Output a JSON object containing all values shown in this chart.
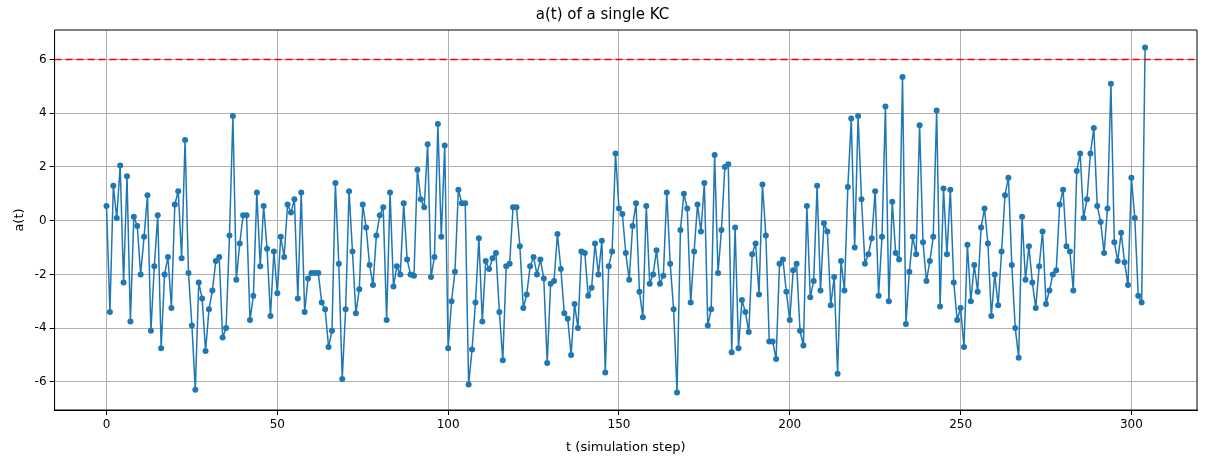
{
  "chart_data": {
    "type": "line",
    "title": "a(t) of a single KC",
    "xlabel": "t (simulation step)",
    "ylabel": "a(t)",
    "x": [
      0,
      1,
      2,
      3,
      4,
      5,
      6,
      7,
      8,
      9,
      10,
      11,
      12,
      13,
      14,
      15,
      16,
      17,
      18,
      19,
      20,
      21,
      22,
      23,
      24,
      25,
      26,
      27,
      28,
      29,
      30,
      31,
      32,
      33,
      34,
      35,
      36,
      37,
      38,
      39,
      40,
      41,
      42,
      43,
      44,
      45,
      46,
      47,
      48,
      49,
      50,
      51,
      52,
      53,
      54,
      55,
      56,
      57,
      58,
      59,
      60,
      61,
      62,
      63,
      64,
      65,
      66,
      67,
      68,
      69,
      70,
      71,
      72,
      73,
      74,
      75,
      76,
      77,
      78,
      79,
      80,
      81,
      82,
      83,
      84,
      85,
      86,
      87,
      88,
      89,
      90,
      91,
      92,
      93,
      94,
      95,
      96,
      97,
      98,
      99,
      100,
      101,
      102,
      103,
      104,
      105,
      106,
      107,
      108,
      109,
      110,
      111,
      112,
      113,
      114,
      115,
      116,
      117,
      118,
      119,
      120,
      121,
      122,
      123,
      124,
      125,
      126,
      127,
      128,
      129,
      130,
      131,
      132,
      133,
      134,
      135,
      136,
      137,
      138,
      139,
      140,
      141,
      142,
      143,
      144,
      145,
      146,
      147,
      148,
      149,
      150,
      151,
      152,
      153,
      154,
      155,
      156,
      157,
      158,
      159,
      160,
      161,
      162,
      163,
      164,
      165,
      166,
      167,
      168,
      169,
      170,
      171,
      172,
      173,
      174,
      175,
      176,
      177,
      178,
      179,
      180,
      181,
      182,
      183,
      184,
      185,
      186,
      187,
      188,
      189,
      190,
      191,
      192,
      193,
      194,
      195,
      196,
      197,
      198,
      199,
      200,
      201,
      202,
      203,
      204,
      205,
      206,
      207,
      208,
      209,
      210,
      211,
      212,
      213,
      214,
      215,
      216,
      217,
      218,
      219,
      220,
      221,
      222,
      223,
      224,
      225,
      226,
      227,
      228,
      229,
      230,
      231,
      232,
      233,
      234,
      235,
      236,
      237,
      238,
      239,
      240,
      241,
      242,
      243,
      244,
      245,
      246,
      247,
      248,
      249,
      250,
      251,
      252,
      253,
      254,
      255,
      256,
      257,
      258,
      259,
      260,
      261,
      262,
      263,
      264,
      265,
      266,
      267,
      268,
      269,
      270,
      271,
      272,
      273,
      274,
      275,
      276,
      277,
      278,
      279,
      280,
      281,
      282,
      283,
      284,
      285,
      286,
      287,
      288,
      289,
      290,
      291,
      292,
      293,
      294,
      295,
      296,
      297,
      298,
      299,
      300,
      301,
      302,
      303,
      304
    ],
    "series": [
      {
        "color": "#1f77b4",
        "values": [
          0.55,
          -3.4,
          1.3,
          0.1,
          2.05,
          -2.3,
          1.65,
          -3.75,
          0.15,
          -0.2,
          -2.0,
          -0.6,
          0.95,
          -4.1,
          -1.7,
          0.2,
          -4.75,
          -2.0,
          -1.35,
          -3.25,
          0.6,
          1.1,
          -1.4,
          3.0,
          -1.95,
          -3.9,
          -6.3,
          -2.3,
          -2.9,
          -4.85,
          -3.3,
          -2.6,
          -1.5,
          -1.35,
          -4.35,
          -4.0,
          -0.55,
          3.9,
          -2.2,
          -0.85,
          0.2,
          0.2,
          -3.7,
          -2.8,
          1.05,
          -1.7,
          0.55,
          -1.05,
          -3.55,
          -1.15,
          -2.7,
          -0.6,
          -1.35,
          0.6,
          0.3,
          0.8,
          -2.9,
          1.05,
          -3.4,
          -2.15,
          -1.95,
          -1.95,
          -1.95,
          -3.05,
          -3.3,
          -4.7,
          -4.1,
          1.4,
          -1.6,
          -5.9,
          -3.3,
          1.1,
          -1.15,
          -3.45,
          -2.55,
          0.6,
          -0.25,
          -1.65,
          -2.4,
          -0.55,
          0.2,
          0.5,
          -3.7,
          1.05,
          -2.45,
          -1.7,
          -2.0,
          0.65,
          -1.45,
          -2.0,
          -2.05,
          1.9,
          0.8,
          0.5,
          2.85,
          -2.1,
          -1.35,
          3.6,
          -0.6,
          2.8,
          -4.75,
          -3.0,
          -1.9,
          1.15,
          0.65,
          0.65,
          -6.1,
          -4.8,
          -3.05,
          -0.65,
          -3.75,
          -1.5,
          -1.8,
          -1.4,
          -1.2,
          -3.4,
          -5.2,
          -1.7,
          -1.6,
          0.5,
          0.5,
          -0.95,
          -3.25,
          -2.75,
          -1.7,
          -1.35,
          -2.0,
          -1.45,
          -2.15,
          -5.3,
          -2.35,
          -2.25,
          -0.5,
          -1.8,
          -3.45,
          -3.65,
          -5.0,
          -3.1,
          -4.0,
          -1.15,
          -1.2,
          -2.8,
          -2.5,
          -0.85,
          -2.0,
          -0.75,
          -5.65,
          -1.7,
          -1.15,
          2.5,
          0.45,
          0.25,
          -1.2,
          -2.2,
          -0.2,
          0.65,
          -2.65,
          -3.6,
          0.55,
          -2.35,
          -2.0,
          -1.1,
          -2.35,
          -2.05,
          1.05,
          -1.6,
          -3.3,
          -6.4,
          -0.35,
          1.0,
          0.45,
          -3.05,
          -1.15,
          0.6,
          -0.4,
          1.4,
          -3.9,
          -3.3,
          2.45,
          -1.95,
          -0.35,
          2.0,
          2.1,
          -4.9,
          -0.25,
          -4.75,
          -2.95,
          -3.4,
          -4.15,
          -1.25,
          -0.85,
          -2.75,
          1.35,
          -0.55,
          -4.5,
          -4.5,
          -5.15,
          -1.6,
          -1.45,
          -2.65,
          -3.7,
          -1.85,
          -1.6,
          -4.1,
          -4.65,
          0.55,
          -2.85,
          -2.25,
          1.3,
          -2.6,
          -0.1,
          -0.4,
          -3.15,
          -2.1,
          -5.7,
          -1.5,
          -2.6,
          1.25,
          3.8,
          -1.0,
          3.9,
          0.8,
          -1.6,
          -1.25,
          -0.65,
          1.1,
          -2.8,
          -0.6,
          4.25,
          -3.0,
          0.7,
          -1.2,
          -1.45,
          5.35,
          -3.85,
          -1.9,
          -0.6,
          -1.25,
          3.55,
          -0.8,
          -2.25,
          -1.5,
          -0.6,
          4.1,
          -3.2,
          1.2,
          -1.25,
          1.15,
          -2.3,
          -3.7,
          -3.25,
          -4.7,
          -0.9,
          -3.0,
          -1.65,
          -2.65,
          -0.25,
          0.45,
          -0.85,
          -3.55,
          -2.0,
          -3.15,
          -1.15,
          0.95,
          1.6,
          -1.65,
          -4.0,
          -5.1,
          0.15,
          -2.2,
          -0.95,
          -2.3,
          -3.25,
          -1.7,
          -0.4,
          -3.1,
          -2.6,
          -2.0,
          -1.85,
          0.6,
          1.15,
          -0.95,
          -1.15,
          -2.6,
          1.85,
          2.5,
          0.1,
          0.8,
          2.5,
          3.45,
          0.55,
          -0.05,
          -1.2,
          0.45,
          5.1,
          -0.8,
          -1.5,
          -0.45,
          -1.55,
          -2.4,
          1.6,
          0.1,
          -2.8,
          -3.05,
          6.45
        ]
      }
    ],
    "xlim": [
      -15.2,
      319.2
    ],
    "xticks": [
      0,
      50,
      100,
      150,
      200,
      250,
      300
    ],
    "ylim": [
      -7.05,
      7.1
    ],
    "yticks": [
      -6,
      -4,
      -2,
      0,
      2,
      4,
      6
    ],
    "ref_lines": [
      {
        "axis": "y",
        "value": 6,
        "color": "#ff0000",
        "line_style": "dashed"
      }
    ],
    "grid": true,
    "marker": "circle",
    "line_style": "solid"
  }
}
